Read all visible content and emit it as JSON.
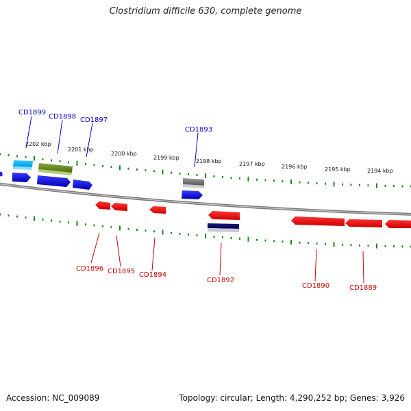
{
  "title": "Clostridium difficile 630, complete genome",
  "footer": {
    "accession": "Accession: NC_009089",
    "summary": "Topology: circular; Length: 4,290,252 bp; Genes: 3,926"
  },
  "colors": {
    "forward_label": "#0000cc",
    "reverse_label": "#cc0000",
    "tick": "#1a8a1a",
    "backbone": "#808080"
  },
  "kbp_labels": [
    "2202 kbp",
    "2201 kbp",
    "2200 kbp",
    "2199 kbp",
    "2198 kbp",
    "2197 kbp",
    "2196 kbp",
    "2195 kbp",
    "2194 kbp"
  ],
  "forward_genes": [
    "CD1899",
    "CD1898",
    "CD1897",
    "CD1893"
  ],
  "reverse_genes": [
    "CD1896",
    "CD1895",
    "CD1894",
    "CD1892",
    "CD1890",
    "CD1889"
  ]
}
